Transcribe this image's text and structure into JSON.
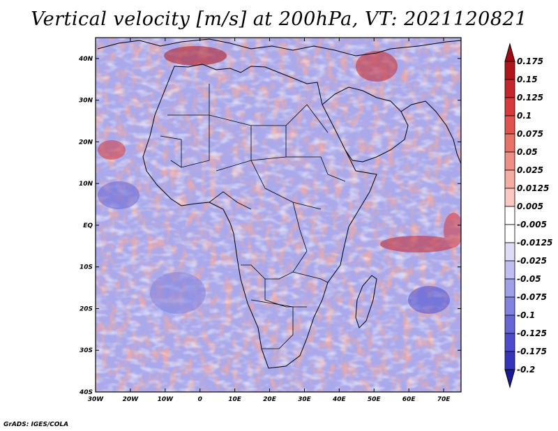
{
  "title": "Vertical velocity [m/s] at 200hPa, VT: 2021120821",
  "credit": "GrADS: IGES/COLA",
  "map": {
    "lon_range": [
      -30,
      75
    ],
    "lat_range": [
      -40,
      45
    ],
    "lon_ticks": [
      {
        "value": -30,
        "label": "30W"
      },
      {
        "value": -20,
        "label": "20W"
      },
      {
        "value": -10,
        "label": "10W"
      },
      {
        "value": 0,
        "label": "0"
      },
      {
        "value": 10,
        "label": "10E"
      },
      {
        "value": 20,
        "label": "20E"
      },
      {
        "value": 30,
        "label": "30E"
      },
      {
        "value": 40,
        "label": "40E"
      },
      {
        "value": 50,
        "label": "50E"
      },
      {
        "value": 60,
        "label": "60E"
      },
      {
        "value": 70,
        "label": "70E"
      }
    ],
    "lat_ticks": [
      {
        "value": 40,
        "label": "40N"
      },
      {
        "value": 30,
        "label": "30N"
      },
      {
        "value": 20,
        "label": "20N"
      },
      {
        "value": 10,
        "label": "10N"
      },
      {
        "value": 0,
        "label": "EQ"
      },
      {
        "value": -10,
        "label": "10S"
      },
      {
        "value": -20,
        "label": "20S"
      },
      {
        "value": -30,
        "label": "30S"
      },
      {
        "value": -40,
        "label": "40S"
      }
    ]
  },
  "colorbar": {
    "levels": [
      {
        "label": "0.175",
        "color": "#b0141c"
      },
      {
        "label": "0.15",
        "color": "#c4262c"
      },
      {
        "label": "0.125",
        "color": "#d63a3c"
      },
      {
        "label": "0.1",
        "color": "#e0534f"
      },
      {
        "label": "0.075",
        "color": "#e87168"
      },
      {
        "label": "0.05",
        "color": "#ef8e84"
      },
      {
        "label": "0.025",
        "color": "#f5aca2"
      },
      {
        "label": "0.0125",
        "color": "#f9c8c0"
      },
      {
        "label": "0.005",
        "color": "#fce3de"
      },
      {
        "label": "-0.005",
        "color": "#ffffff"
      },
      {
        "label": "-0.0125",
        "color": "#dcdcf7"
      },
      {
        "label": "-0.025",
        "color": "#bebef0"
      },
      {
        "label": "-0.05",
        "color": "#a0a0e8"
      },
      {
        "label": "-0.075",
        "color": "#8282df"
      },
      {
        "label": "-0.1",
        "color": "#6666d6"
      },
      {
        "label": "-0.125",
        "color": "#4c4ccc"
      },
      {
        "label": "-0.175",
        "color": "#3535bc"
      },
      {
        "label": "-0.2",
        "color": "#2424a8"
      }
    ],
    "top_color": "#a00a14",
    "bottom_color": "#1a1a96"
  }
}
